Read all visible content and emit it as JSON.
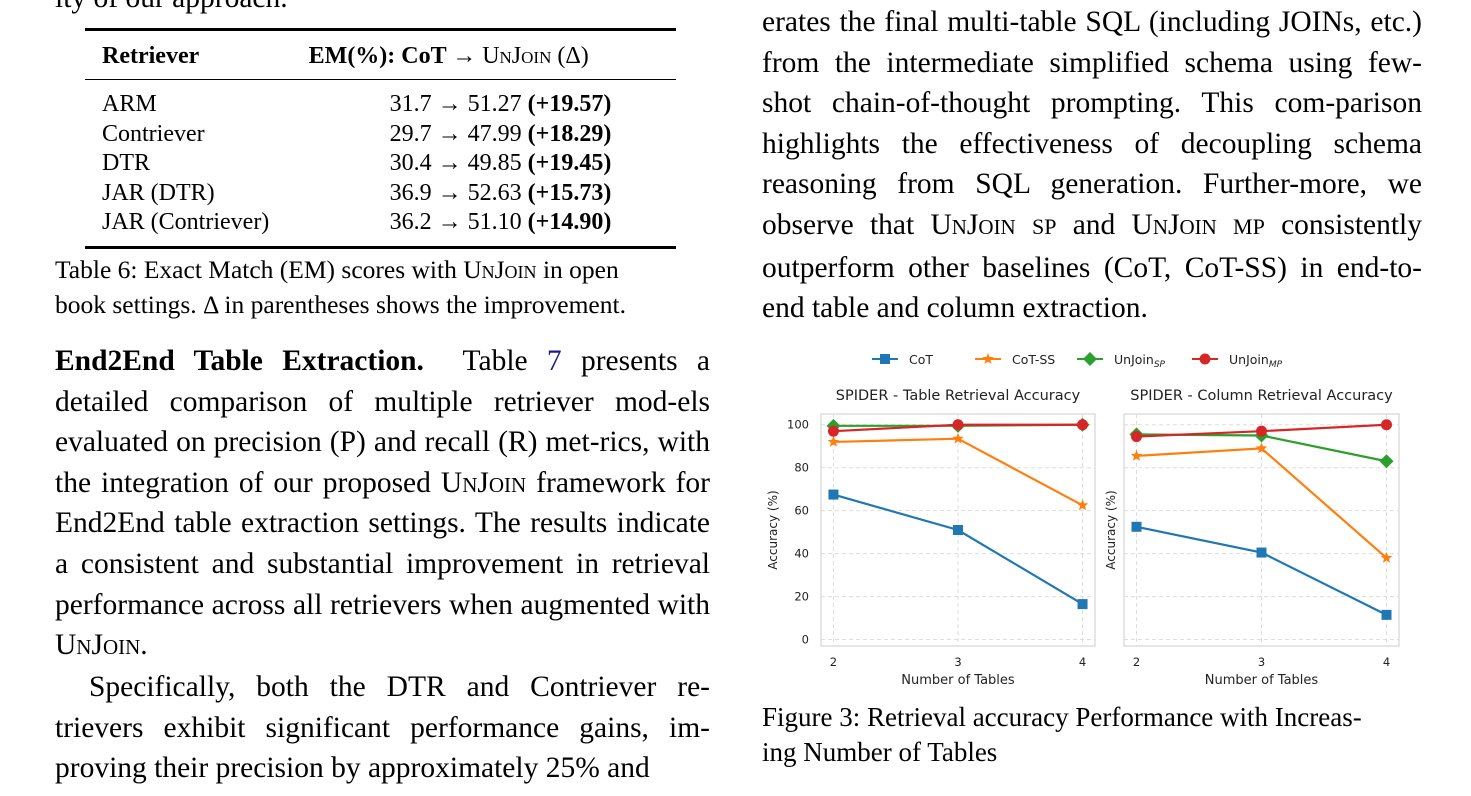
{
  "left": {
    "cut_line": "ity of our approach.",
    "table": {
      "headers": [
        "Retriever",
        "EM(%): CoT → UnJoin (Δ)"
      ],
      "rows": [
        {
          "retriever": "ARM",
          "before": "31.7",
          "after": "51.27",
          "delta": "(+19.57)"
        },
        {
          "retriever": "Contriever",
          "before": "29.7",
          "after": "47.99",
          "delta": "(+18.29)"
        },
        {
          "retriever": "DTR",
          "before": "30.4",
          "after": "49.85",
          "delta": "(+19.45)"
        },
        {
          "retriever": "JAR (DTR)",
          "before": "36.9",
          "after": "52.63",
          "delta": "(+15.73)"
        },
        {
          "retriever": "JAR (Contriever)",
          "before": "36.2",
          "after": "51.10",
          "delta": "(+14.90)"
        }
      ],
      "caption_line1": "Table 6: Exact Match (EM) scores with UnJoin in open",
      "caption_line2": "book settings. Δ in parentheses shows the improvement."
    },
    "section_heading": "End2End Table Extraction.",
    "para1_text": "Table 7 presents a detailed comparison of multiple retriever models evaluated on precision (P) and recall (R) metrics, with the integration of our proposed UnJoin framework for End2End table extraction settings. The results indicate a consistent and substantial improvement in retrieval performance across all retrievers when augmented with UnJoin.",
    "para2_text": "Specifically, both the DTR and Contriever retrievers exhibit significant performance gains, improving their precision by approximately 25% and"
  },
  "right": {
    "para_text": "erates the final multi-table SQL (including JOINs, etc.) from the intermediate simplified schema using few-shot chain-of-thought prompting. This comparison highlights the effectiveness of decoupling schema reasoning from SQL generation. Furthermore, we observe that UnJoin SP and UnJoin MP consistently outperform other baselines (CoT, CoT-SS) in end-to-end table and column extraction.",
    "figure_caption": "Figure 3: Retrieval accuracy Performance with Increasing Number of Tables"
  },
  "chart_data": [
    {
      "type": "line",
      "title": "SPIDER - Table Retrieval Accuracy",
      "xlabel": "Number of Tables",
      "ylabel": "Accuracy (%)",
      "x": [
        2,
        3,
        4
      ],
      "ylim": [
        0,
        105
      ],
      "yticks": [
        0,
        20,
        40,
        60,
        80,
        100
      ],
      "grid": true,
      "series": [
        {
          "name": "CoT",
          "color": "#1f77b4",
          "marker": "square",
          "values": [
            67.5,
            51,
            16.5
          ]
        },
        {
          "name": "CoT-SS",
          "color": "#ff7f0e",
          "marker": "star",
          "values": [
            92,
            93.5,
            62.5
          ]
        },
        {
          "name": "UnJoin_SP",
          "color": "#2ca02c",
          "marker": "diamond",
          "values": [
            99.5,
            99.5,
            100
          ]
        },
        {
          "name": "UnJoin_MP",
          "color": "#d62728",
          "marker": "circle",
          "values": [
            97,
            100,
            100
          ]
        }
      ]
    },
    {
      "type": "line",
      "title": "SPIDER - Column Retrieval Accuracy",
      "xlabel": "Number of Tables",
      "ylabel": "Accuracy (%)",
      "x": [
        2,
        3,
        4
      ],
      "ylim": [
        0,
        105
      ],
      "grid": true,
      "series": [
        {
          "name": "CoT",
          "color": "#1f77b4",
          "marker": "square",
          "values": [
            52.5,
            40.5,
            11.5
          ]
        },
        {
          "name": "CoT-SS",
          "color": "#ff7f0e",
          "marker": "star",
          "values": [
            85.5,
            89,
            38
          ]
        },
        {
          "name": "UnJoin_SP",
          "color": "#2ca02c",
          "marker": "diamond",
          "values": [
            95.5,
            95,
            83
          ]
        },
        {
          "name": "UnJoin_MP",
          "color": "#d62728",
          "marker": "circle",
          "values": [
            94.5,
            97,
            100
          ]
        }
      ]
    }
  ],
  "legend": [
    {
      "label": "CoT",
      "sub": "",
      "color": "#1f77b4",
      "marker": "square"
    },
    {
      "label": "CoT-SS",
      "sub": "",
      "color": "#ff7f0e",
      "marker": "star"
    },
    {
      "label": "UnJoin",
      "sub": "SP",
      "color": "#2ca02c",
      "marker": "diamond"
    },
    {
      "label": "UnJoin",
      "sub": "MP",
      "color": "#d62728",
      "marker": "circle"
    }
  ]
}
